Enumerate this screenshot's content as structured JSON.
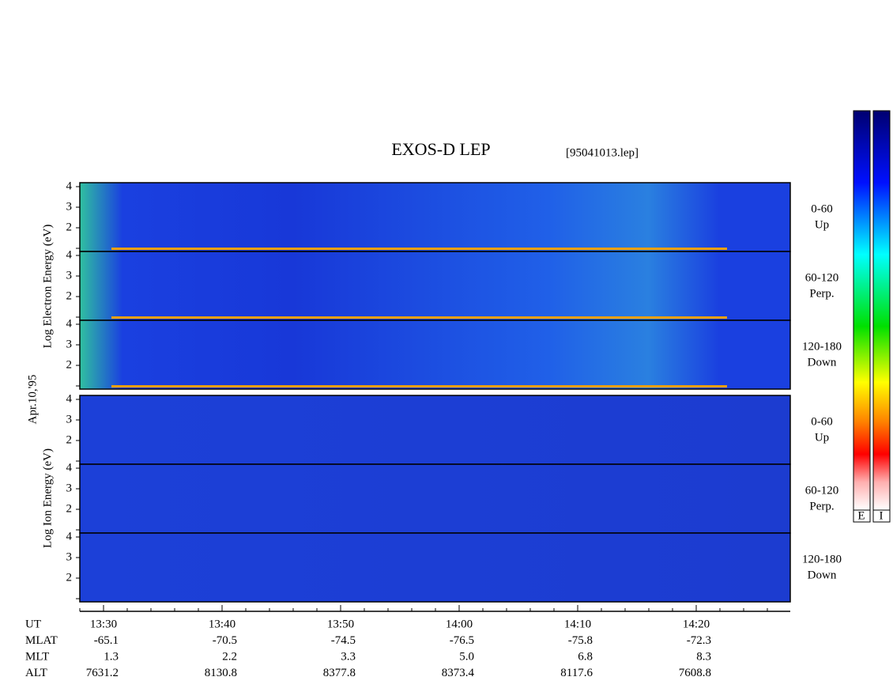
{
  "title": "EXOS-D LEP",
  "file": "[95041013.lep]",
  "date_label": "Apr.10,'95",
  "electron": {
    "axis_label": "Log  Electron  Energy (eV)",
    "panels": [
      {
        "range": "0-60",
        "direction": "Up",
        "ticks": [
          "4",
          "3",
          "2"
        ]
      },
      {
        "range": "60-120",
        "direction": "Perp.",
        "ticks": [
          "4",
          "3",
          "2"
        ]
      },
      {
        "range": "120-180",
        "direction": "Down",
        "ticks": [
          "4",
          "3",
          "2"
        ]
      }
    ]
  },
  "ion": {
    "axis_label": "Log  Ion  Energy (eV)",
    "panels": [
      {
        "range": "0-60",
        "direction": "Up",
        "ticks": [
          "4",
          "3",
          "2"
        ]
      },
      {
        "range": "60-120",
        "direction": "Perp.",
        "ticks": [
          "4",
          "3",
          "2"
        ]
      },
      {
        "range": "120-180",
        "direction": "Down",
        "ticks": [
          "4",
          "3",
          "2"
        ]
      }
    ]
  },
  "time_axis": {
    "rows": [
      {
        "name": "UT",
        "values": [
          "13:30",
          "13:40",
          "13:50",
          "14:00",
          "14:10",
          "14:20"
        ]
      },
      {
        "name": "MLAT",
        "values": [
          "-65.1",
          "-70.5",
          "-74.5",
          "-76.5",
          "-75.8",
          "-72.3"
        ]
      },
      {
        "name": "MLT",
        "values": [
          "1.3",
          "2.2",
          "3.3",
          "5.0",
          "6.8",
          "8.3"
        ]
      },
      {
        "name": "ALT",
        "values": [
          "7631.2",
          "8130.8",
          "8377.8",
          "8373.4",
          "8117.6",
          "7608.8"
        ]
      }
    ]
  },
  "colorbar": {
    "labels": [
      "E",
      "I"
    ]
  }
}
